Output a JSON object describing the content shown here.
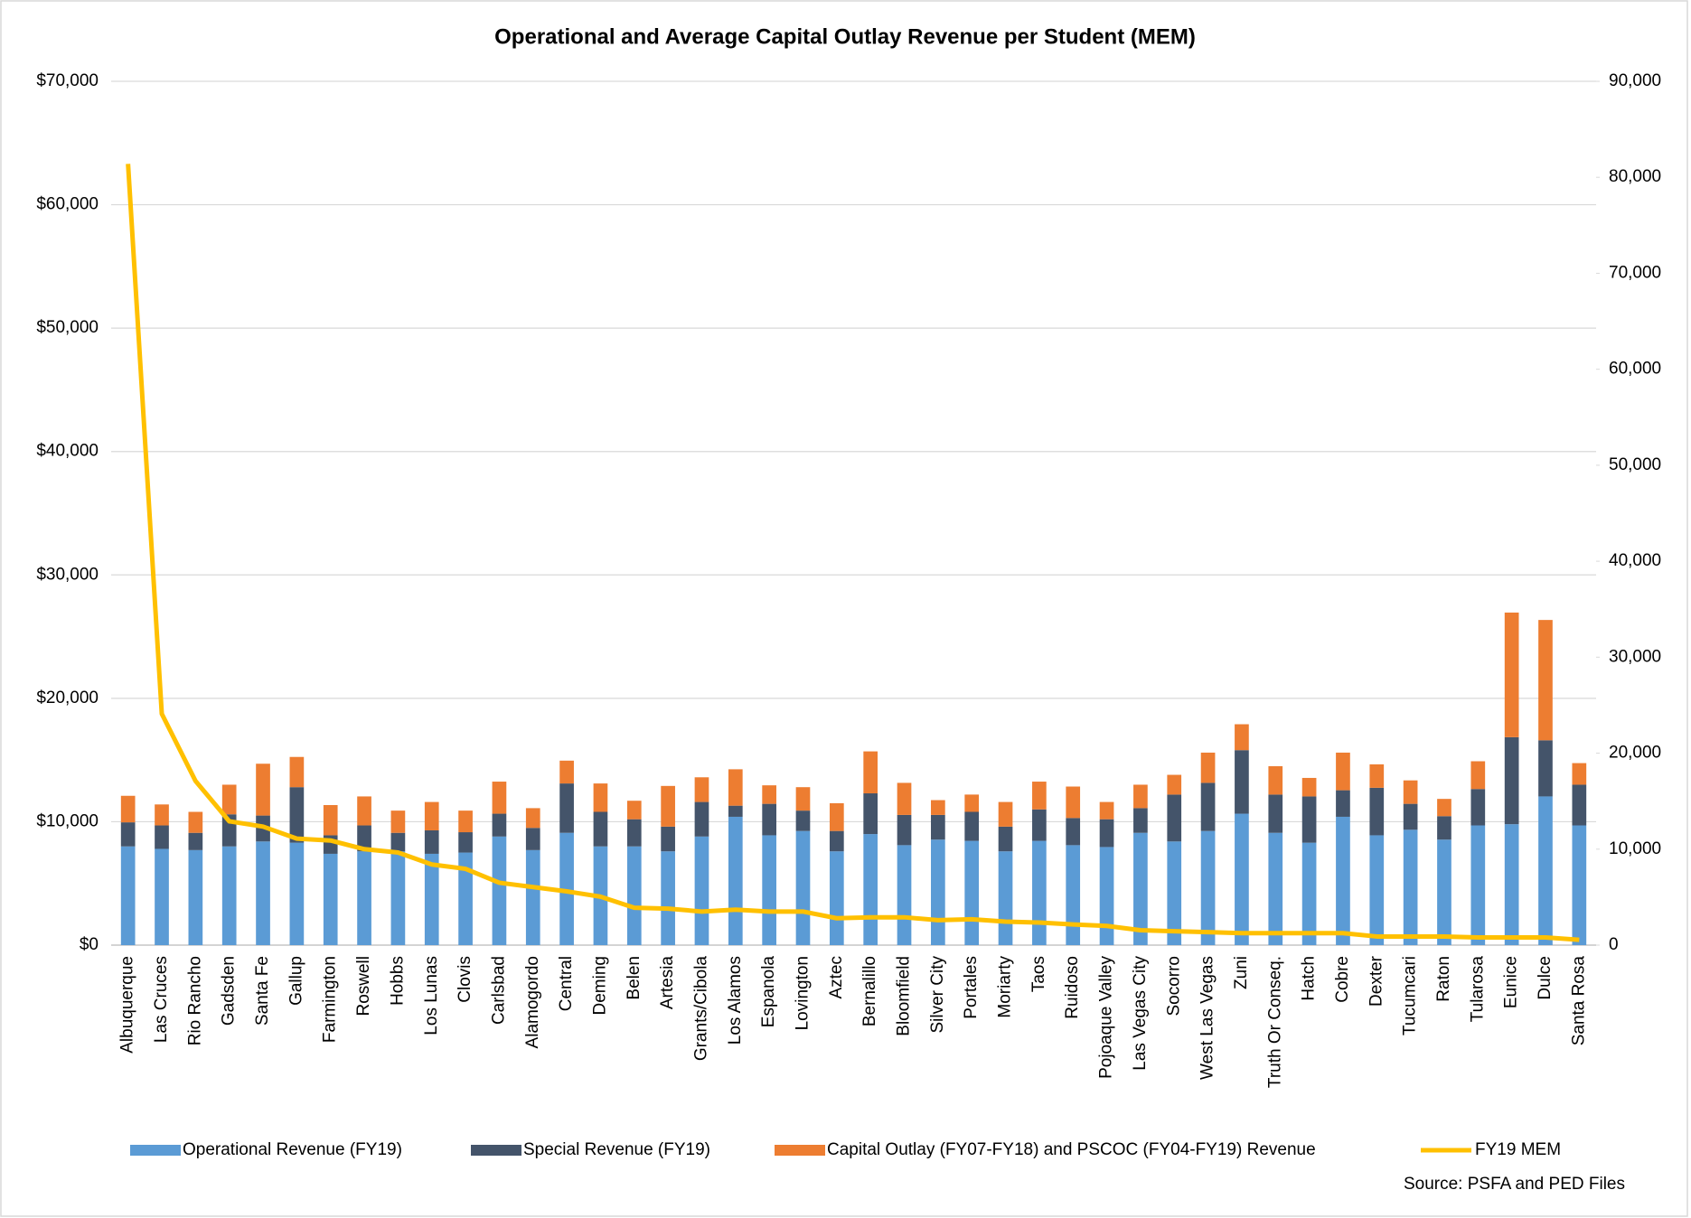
{
  "chart_data": {
    "type": "bar",
    "stacked": true,
    "title": "Operational and Average Capital Outlay Revenue per Student (MEM)",
    "source": "Source: PSFA and PED Files",
    "categories": [
      "Albuquerque",
      "Las Cruces",
      "Rio Rancho",
      "Gadsden",
      "Santa Fe",
      "Gallup",
      "Farmington",
      "Roswell",
      "Hobbs",
      "Los Lunas",
      "Clovis",
      "Carlsbad",
      "Alamogordo",
      "Central",
      "Deming",
      "Belen",
      "Artesia",
      "Grants/Cibola",
      "Los Alamos",
      "Espanola",
      "Lovington",
      "Aztec",
      "Bernalillo",
      "Bloomfield",
      "Silver City",
      "Portales",
      "Moriarty",
      "Taos",
      "Ruidoso",
      "Pojoaque Valley",
      "Las Vegas City",
      "Socorro",
      "West Las Vegas",
      "Zuni",
      "Truth Or Conseq.",
      "Hatch",
      "Cobre",
      "Dexter",
      "Tucumcari",
      "Raton",
      "Tularosa",
      "Eunice",
      "Dulce",
      "Santa Rosa"
    ],
    "series": [
      {
        "name": "Operational Revenue (FY19)",
        "color": "#5b9bd5",
        "type": "bar",
        "values": [
          8000,
          7800,
          7700,
          8000,
          8400,
          8300,
          7400,
          7600,
          7600,
          7400,
          7500,
          8800,
          7700,
          9100,
          8000,
          8000,
          7600,
          8800,
          10400,
          8900,
          9250,
          7600,
          9000,
          8100,
          8550,
          8450,
          7600,
          8450,
          8100,
          7950,
          9100,
          8400,
          9250,
          10650,
          9100,
          8300,
          10400,
          8900,
          9350,
          8550,
          9700,
          9800,
          12050,
          9700
        ]
      },
      {
        "name": "Special Revenue (FY19)",
        "color": "#44546a",
        "type": "bar",
        "values": [
          1950,
          1900,
          1400,
          2600,
          2100,
          4500,
          1500,
          2100,
          1500,
          1900,
          1650,
          1850,
          1800,
          4000,
          2800,
          2200,
          2000,
          2800,
          900,
          2550,
          1650,
          1650,
          3300,
          2450,
          2000,
          2350,
          2000,
          2550,
          2200,
          2250,
          2000,
          3800,
          3900,
          5150,
          3100,
          3750,
          2150,
          3850,
          2100,
          1900,
          2950,
          7050,
          4550,
          3300
        ]
      },
      {
        "name": "Capital Outlay (FY07-FY18) and PSCOC (FY04-FY19) Revenue",
        "color": "#ed7d31",
        "type": "bar",
        "values": [
          2150,
          1700,
          1700,
          2400,
          4200,
          2450,
          2450,
          2350,
          1800,
          2300,
          1750,
          2600,
          1600,
          1850,
          2300,
          1500,
          3300,
          2000,
          2950,
          1500,
          1900,
          2250,
          3400,
          2600,
          1200,
          1400,
          2000,
          2250,
          2550,
          1400,
          1900,
          1600,
          2450,
          2100,
          2300,
          1500,
          3050,
          1900,
          1900,
          1400,
          2250,
          10100,
          9750,
          1750
        ]
      },
      {
        "name": "FY19 MEM",
        "color": "#ffc000",
        "type": "line",
        "axis": "y2",
        "values": [
          81400,
          24100,
          17100,
          12900,
          12350,
          11100,
          10900,
          10000,
          9650,
          8400,
          7950,
          6500,
          6050,
          5600,
          5050,
          3900,
          3800,
          3500,
          3700,
          3500,
          3500,
          2800,
          2900,
          2900,
          2600,
          2700,
          2450,
          2350,
          2150,
          2000,
          1550,
          1450,
          1350,
          1250,
          1250,
          1250,
          1250,
          900,
          900,
          900,
          800,
          800,
          800,
          550
        ]
      }
    ],
    "ylim": [
      0,
      70000
    ],
    "yticks": [
      {
        "value": 0,
        "label": "$0"
      },
      {
        "value": 10000,
        "label": "$10,000"
      },
      {
        "value": 20000,
        "label": "$20,000"
      },
      {
        "value": 30000,
        "label": "$30,000"
      },
      {
        "value": 40000,
        "label": "$40,000"
      },
      {
        "value": 50000,
        "label": "$50,000"
      },
      {
        "value": 60000,
        "label": "$60,000"
      },
      {
        "value": 70000,
        "label": "$70,000"
      }
    ],
    "y2lim": [
      0,
      90000
    ],
    "y2ticks": [
      0,
      {
        "value": 10000,
        "label": "10,000"
      },
      {
        "value": 20000,
        "label": "20,000"
      },
      {
        "value": 30000,
        "label": "30,000"
      },
      {
        "value": 40000,
        "label": "40,000"
      },
      {
        "value": 50000,
        "label": "50,000"
      },
      {
        "value": 60000,
        "label": "60,000"
      },
      {
        "value": 70000,
        "label": "70,000"
      },
      {
        "value": 80000,
        "label": "80,000"
      },
      {
        "value": 90000,
        "label": "90,000"
      }
    ],
    "grid": true,
    "legend": "bottom"
  }
}
